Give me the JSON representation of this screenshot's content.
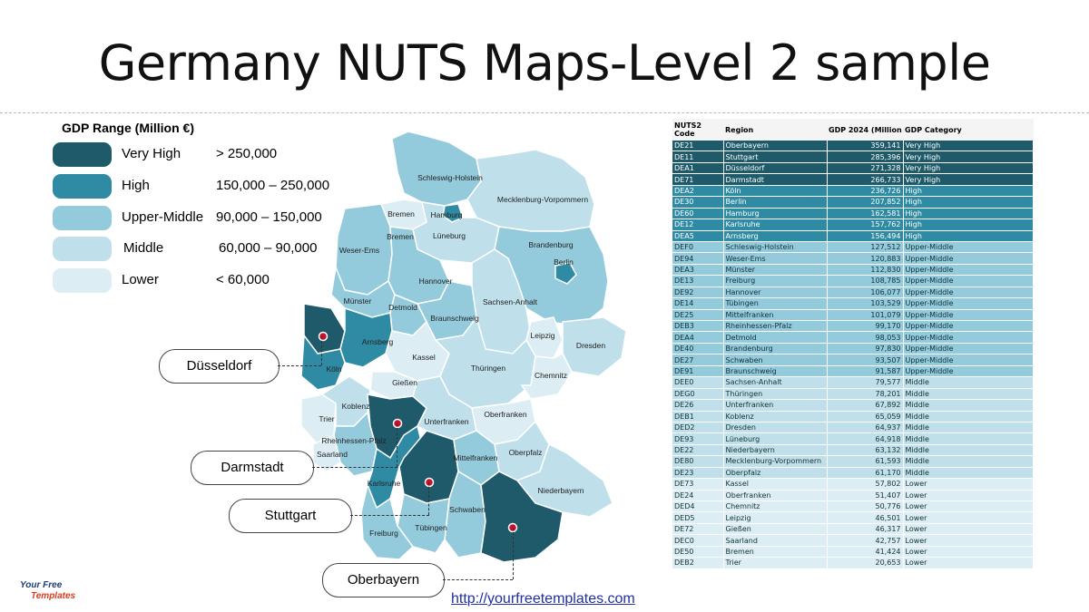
{
  "title": "Germany NUTS Maps-Level 2 sample",
  "legend": {
    "title": "GDP Range (Million €)",
    "items": [
      {
        "name": "Very High",
        "range": "> 250,000",
        "color": "#1e5a6a"
      },
      {
        "name": "High",
        "range": "150,000 – 250,000",
        "color": "#2f8aa3"
      },
      {
        "name": "Upper-Middle",
        "range": "90,000 – 150,000",
        "color": "#94cbdc"
      },
      {
        "name": "Middle",
        "range": "60,000 – 90,000",
        "color": "#bfe0ea"
      },
      {
        "name": "Lower",
        "range": "< 60,000",
        "color": "#dceef4"
      }
    ]
  },
  "map_labels": {
    "schleswig_holstein": "Schleswig-Holstein",
    "mecklenburg": "Mecklenburg-Vorpommern",
    "hamburg": "Hamburg",
    "bremen_1": "Bremen",
    "bremen_2": "Bremen",
    "lueneburg": "Lüneburg",
    "weser_ems": "Weser-Ems",
    "brandenburg": "Brandenburg",
    "berlin": "Berlin",
    "hannover": "Hannover",
    "muenster": "Münster",
    "detmold": "Detmold",
    "braunschweig": "Braunschweig",
    "sachsen_anhalt": "Sachsen-Anhalt",
    "arnsberg": "Arnsberg",
    "leipzig": "Leipzig",
    "dresden": "Dresden",
    "kassel": "Kassel",
    "koeln": "Köln",
    "thueringen": "Thüringen",
    "chemnitz": "Chemnitz",
    "giessen": "Gießen",
    "koblenz": "Koblenz",
    "trier": "Trier",
    "unterfranken": "Unterfranken",
    "oberfranken": "Oberfranken",
    "rheinhessen": "Rheinhessen-Pfalz",
    "saarland": "Saarland",
    "mittelfranken": "Mittelfranken",
    "oberpfalz": "Oberpfalz",
    "karlsruhe": "Karlsruhe",
    "niederbayern": "Niederbayern",
    "schwaben": "Schwaben",
    "tuebingen": "Tübingen",
    "freiburg": "Freiburg"
  },
  "callouts": {
    "duesseldorf": "Düsseldorf",
    "darmstadt": "Darmstadt",
    "stuttgart": "Stuttgart",
    "oberbayern": "Oberbayern"
  },
  "table": {
    "headers": [
      "NUTS2 Code",
      "Region",
      "GDP 2024 (Million €)",
      "GDP Category"
    ],
    "rows": [
      {
        "code": "DE21",
        "region": "Oberbayern",
        "gdp": "359,141",
        "category": "Very High"
      },
      {
        "code": "DE11",
        "region": "Stuttgart",
        "gdp": "285,396",
        "category": "Very High"
      },
      {
        "code": "DEA1",
        "region": "Düsseldorf",
        "gdp": "271,328",
        "category": "Very High"
      },
      {
        "code": "DE71",
        "region": "Darmstadt",
        "gdp": "266,733",
        "category": "Very High"
      },
      {
        "code": "DEA2",
        "region": "Köln",
        "gdp": "236,726",
        "category": "High"
      },
      {
        "code": "DE30",
        "region": "Berlin",
        "gdp": "207,852",
        "category": "High"
      },
      {
        "code": "DE60",
        "region": "Hamburg",
        "gdp": "162,581",
        "category": "High"
      },
      {
        "code": "DE12",
        "region": "Karlsruhe",
        "gdp": "157,762",
        "category": "High"
      },
      {
        "code": "DEA5",
        "region": "Arnsberg",
        "gdp": "156,494",
        "category": "High"
      },
      {
        "code": "DEF0",
        "region": "Schleswig-Holstein",
        "gdp": "127,512",
        "category": "Upper-Middle"
      },
      {
        "code": "DE94",
        "region": "Weser-Ems",
        "gdp": "120,883",
        "category": "Upper-Middle"
      },
      {
        "code": "DEA3",
        "region": "Münster",
        "gdp": "112,830",
        "category": "Upper-Middle"
      },
      {
        "code": "DE13",
        "region": "Freiburg",
        "gdp": "108,785",
        "category": "Upper-Middle"
      },
      {
        "code": "DE92",
        "region": "Hannover",
        "gdp": "106,077",
        "category": "Upper-Middle"
      },
      {
        "code": "DE14",
        "region": "Tübingen",
        "gdp": "103,529",
        "category": "Upper-Middle"
      },
      {
        "code": "DE25",
        "region": "Mittelfranken",
        "gdp": "101,079",
        "category": "Upper-Middle"
      },
      {
        "code": "DEB3",
        "region": "Rheinhessen-Pfalz",
        "gdp": "99,170",
        "category": "Upper-Middle"
      },
      {
        "code": "DEA4",
        "region": "Detmold",
        "gdp": "98,053",
        "category": "Upper-Middle"
      },
      {
        "code": "DE40",
        "region": "Brandenburg",
        "gdp": "97,830",
        "category": "Upper-Middle"
      },
      {
        "code": "DE27",
        "region": "Schwaben",
        "gdp": "93,507",
        "category": "Upper-Middle"
      },
      {
        "code": "DE91",
        "region": "Braunschweig",
        "gdp": "91,587",
        "category": "Upper-Middle"
      },
      {
        "code": "DEE0",
        "region": "Sachsen-Anhalt",
        "gdp": "79,577",
        "category": "Middle"
      },
      {
        "code": "DEG0",
        "region": "Thüringen",
        "gdp": "78,201",
        "category": "Middle"
      },
      {
        "code": "DE26",
        "region": "Unterfranken",
        "gdp": "67,892",
        "category": "Middle"
      },
      {
        "code": "DEB1",
        "region": "Koblenz",
        "gdp": "65,059",
        "category": "Middle"
      },
      {
        "code": "DED2",
        "region": "Dresden",
        "gdp": "64,937",
        "category": "Middle"
      },
      {
        "code": "DE93",
        "region": "Lüneburg",
        "gdp": "64,918",
        "category": "Middle"
      },
      {
        "code": "DE22",
        "region": "Niederbayern",
        "gdp": "63,132",
        "category": "Middle"
      },
      {
        "code": "DE80",
        "region": "Mecklenburg-Vorpommern",
        "gdp": "61,593",
        "category": "Middle"
      },
      {
        "code": "DE23",
        "region": "Oberpfalz",
        "gdp": "61,170",
        "category": "Middle"
      },
      {
        "code": "DE73",
        "region": "Kassel",
        "gdp": "57,802",
        "category": "Lower"
      },
      {
        "code": "DE24",
        "region": "Oberfranken",
        "gdp": "51,407",
        "category": "Lower"
      },
      {
        "code": "DED4",
        "region": "Chemnitz",
        "gdp": "50,776",
        "category": "Lower"
      },
      {
        "code": "DED5",
        "region": "Leipzig",
        "gdp": "46,501",
        "category": "Lower"
      },
      {
        "code": "DE72",
        "region": "Gießen",
        "gdp": "46,317",
        "category": "Lower"
      },
      {
        "code": "DEC0",
        "region": "Saarland",
        "gdp": "42,757",
        "category": "Lower"
      },
      {
        "code": "DE50",
        "region": "Bremen",
        "gdp": "41,424",
        "category": "Lower"
      },
      {
        "code": "DEB2",
        "region": "Trier",
        "gdp": "20,653",
        "category": "Lower"
      }
    ]
  },
  "logo": {
    "line1": "Your Free",
    "line2": "Templates"
  },
  "footer_link": "http://yourfreetemplates.com"
}
